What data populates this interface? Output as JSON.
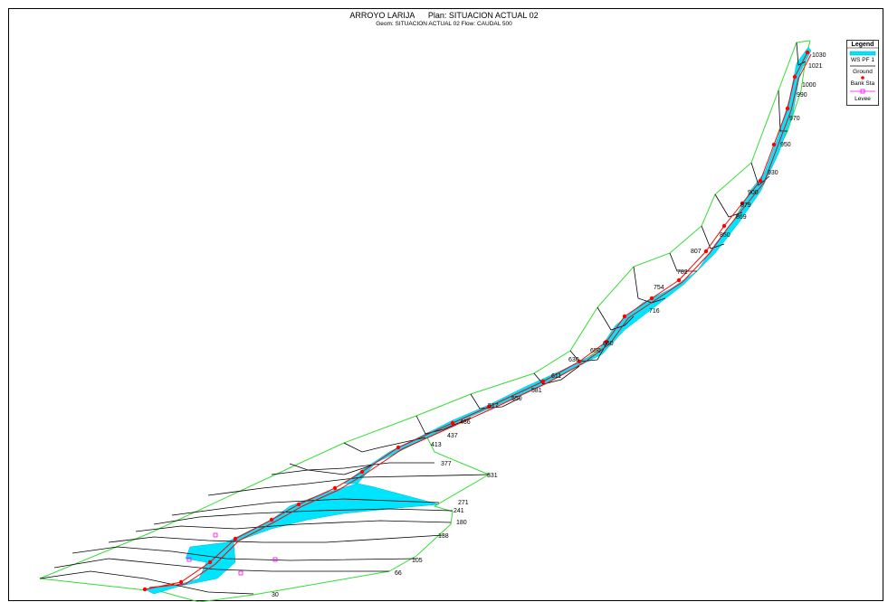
{
  "title": {
    "main": "ARROYO LARIJA      Plan: SITUACION ACTUAL 02",
    "sub": "Geom: SITUACION ACTUAL 02    Flow: CAUDAL 500"
  },
  "legend": {
    "title": "Legend",
    "items": [
      {
        "label": "WS PF 1",
        "color": "#00e5ff"
      },
      {
        "label": "Ground",
        "color": "#000000"
      },
      {
        "label": "Bank Sta",
        "color": "#ff0000"
      },
      {
        "label": "Levee",
        "color": "#ff00ff"
      }
    ]
  },
  "colors": {
    "reach_boundary": "#33dd33",
    "water": "#00e5ff",
    "ground": "#000000",
    "bank": "#ff0000",
    "levee": "#ff00ff"
  },
  "stations": [
    "1030",
    "1021",
    "1000",
    "990",
    "970",
    "950",
    "930",
    "900",
    "879",
    "869",
    "850",
    "807",
    "782",
    "754",
    "716",
    "680",
    "650",
    "630",
    "611",
    "581",
    "550",
    "517",
    "486",
    "437",
    "413",
    "377",
    "331",
    "271",
    "241",
    "180",
    "138",
    "105",
    "66",
    "30"
  ]
}
